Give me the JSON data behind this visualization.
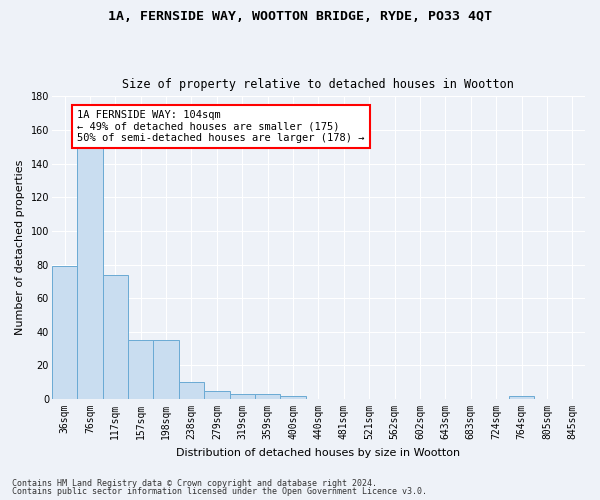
{
  "title1": "1A, FERNSIDE WAY, WOOTTON BRIDGE, RYDE, PO33 4QT",
  "title2": "Size of property relative to detached houses in Wootton",
  "xlabel": "Distribution of detached houses by size in Wootton",
  "ylabel": "Number of detached properties",
  "bar_color": "#c9ddf0",
  "bar_edge_color": "#6aaad4",
  "categories": [
    "36sqm",
    "76sqm",
    "117sqm",
    "157sqm",
    "198sqm",
    "238sqm",
    "279sqm",
    "319sqm",
    "359sqm",
    "400sqm",
    "440sqm",
    "481sqm",
    "521sqm",
    "562sqm",
    "602sqm",
    "643sqm",
    "683sqm",
    "724sqm",
    "764sqm",
    "805sqm",
    "845sqm"
  ],
  "values": [
    79,
    151,
    74,
    35,
    35,
    10,
    5,
    3,
    3,
    2,
    0,
    0,
    0,
    0,
    0,
    0,
    0,
    0,
    2,
    0,
    0
  ],
  "ylim": [
    0,
    180
  ],
  "yticks": [
    0,
    20,
    40,
    60,
    80,
    100,
    120,
    140,
    160,
    180
  ],
  "annotation_text": "1A FERNSIDE WAY: 104sqm\n← 49% of detached houses are smaller (175)\n50% of semi-detached houses are larger (178) →",
  "annotation_box_color": "white",
  "annotation_border_color": "red",
  "footnote1": "Contains HM Land Registry data © Crown copyright and database right 2024.",
  "footnote2": "Contains public sector information licensed under the Open Government Licence v3.0.",
  "background_color": "#eef2f8",
  "grid_color": "#ffffff",
  "title1_fontsize": 9.5,
  "title2_fontsize": 8.5,
  "xlabel_fontsize": 8,
  "ylabel_fontsize": 8,
  "tick_fontsize": 7,
  "annot_fontsize": 7.5,
  "footnote_fontsize": 6
}
